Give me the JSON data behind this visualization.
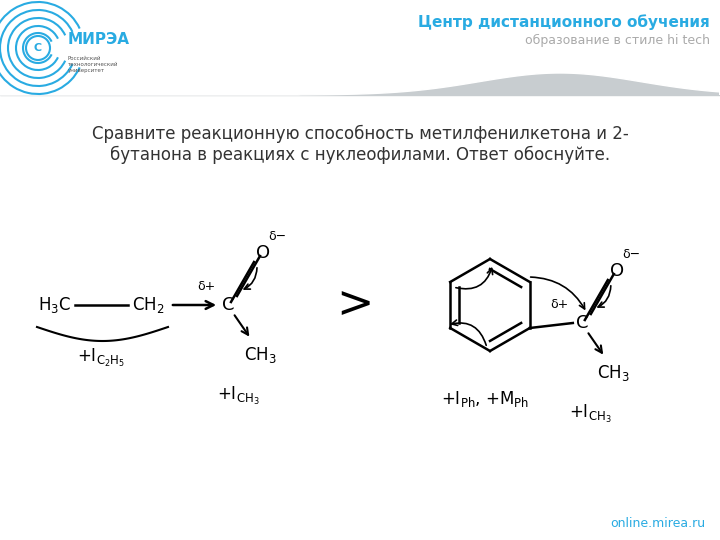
{
  "title_text": "Сравните реакционную способность метилфенилкетона и 2-\nбутанона в реакциях с нуклеофилами. Ответ обоснуйте.",
  "header_text1": "Центр дистанционного обучения",
  "header_text2": "образование в стиле hi tech",
  "footer_text": "online.mirea.ru",
  "header_color": "#29ABE2",
  "header_text2_color": "#AAAAAA",
  "header_bg": "#C8CDD0",
  "white_bg": "#FFFFFF",
  "text_color_dark": "#333333",
  "cyan_color": "#29ABE2"
}
